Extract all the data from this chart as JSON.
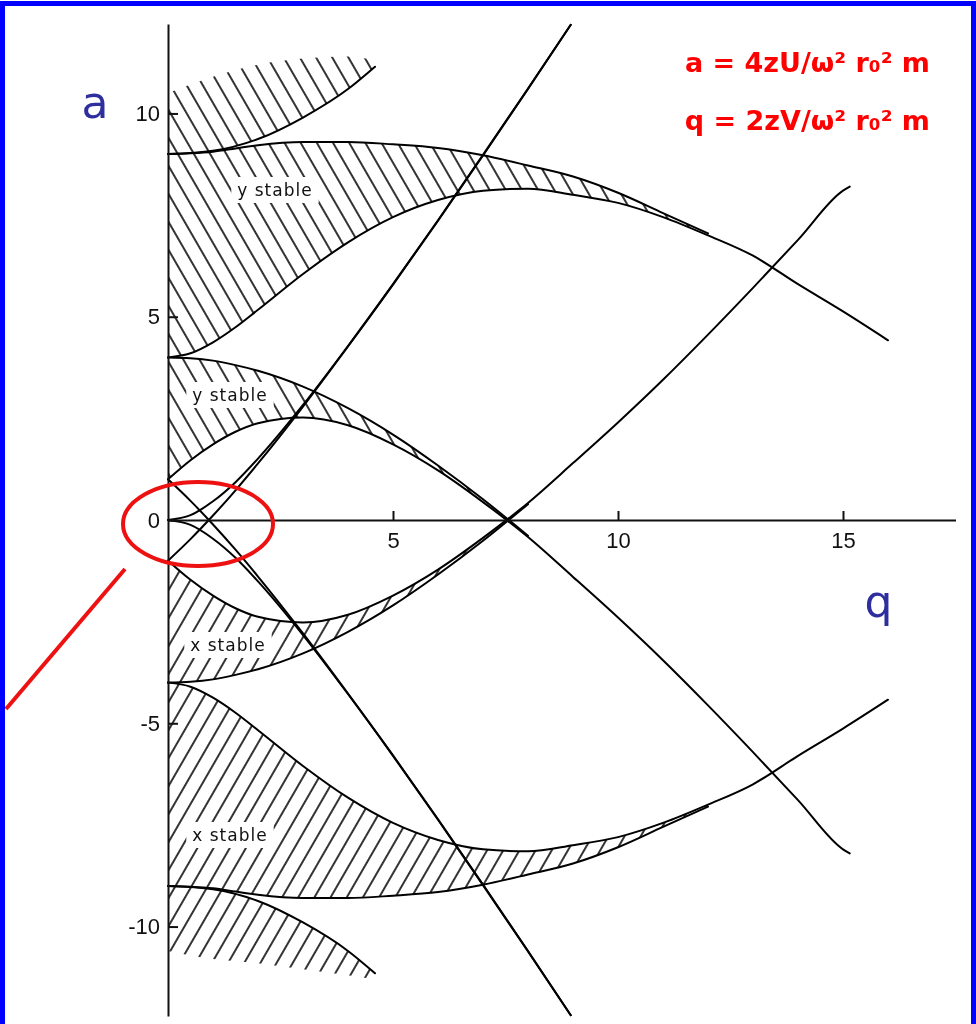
{
  "chart_data": {
    "type": "line",
    "xlabel": "q",
    "ylabel": "a",
    "xlim": [
      0,
      17.5
    ],
    "ylim": [
      -12.2,
      12.2
    ],
    "xticks": [
      5,
      10,
      15
    ],
    "yticks": [
      -10,
      -5,
      0,
      5,
      10
    ],
    "annotations": [
      "a = 4zU/ω² r₀² m",
      "q = 2zV/ω² r₀² m",
      "y stable",
      "y stable",
      "x stable",
      "x stable"
    ],
    "series": [
      {
        "color": "#000000",
        "x": [
          0,
          0.5,
          1,
          1.5,
          2,
          3,
          4,
          5,
          6,
          7,
          8,
          8.95
        ],
        "values": [
          0,
          -0.12,
          -0.46,
          -0.93,
          -1.51,
          -2.83,
          -4.28,
          -5.8,
          -7.37,
          -8.98,
          -10.61,
          -12.18
        ]
      },
      {
        "color": "#000000",
        "x": [
          0,
          0.5,
          1,
          1.5,
          2,
          3,
          4,
          5,
          6,
          7,
          8,
          8.95
        ],
        "values": [
          1.0,
          0.47,
          -0.11,
          -0.73,
          -1.39,
          -2.79,
          -4.27,
          -5.79,
          -7.36,
          -8.97,
          -10.6,
          -12.18
        ]
      },
      {
        "color": "#000000",
        "x": [
          0,
          0.5,
          1,
          1.5,
          2,
          3,
          4,
          5,
          6,
          7,
          8,
          9,
          10,
          11,
          12,
          13,
          14,
          15,
          15.15
        ],
        "values": [
          1.0,
          1.47,
          1.86,
          2.17,
          2.38,
          2.52,
          2.33,
          1.86,
          1.22,
          0.44,
          -0.42,
          -1.4,
          -2.4,
          -3.45,
          -4.56,
          -5.71,
          -6.89,
          -8.1,
          -8.2
        ],
        "lower": [
          1.0,
          1.47,
          1.86,
          2.17,
          2.38,
          2.52,
          2.33,
          1.86,
          1.22,
          0.44,
          null,
          null,
          null,
          null,
          null,
          null,
          null,
          null,
          null
        ],
        "upper": [
          4.0,
          3.98,
          3.92,
          3.81,
          3.67,
          3.28,
          2.75,
          2.1,
          1.34,
          0.51,
          null,
          null,
          null,
          null,
          null,
          null,
          null,
          null,
          null
        ]
      },
      {
        "color": "#000000",
        "x": [
          0,
          0.5,
          1,
          1.5,
          2,
          3,
          4,
          5,
          6,
          7,
          8
        ],
        "values": [
          4.0,
          3.98,
          3.92,
          3.81,
          3.67,
          3.28,
          2.75,
          2.1,
          1.34,
          0.51,
          -0.39
        ]
      },
      {
        "color": "#000000",
        "x": [
          0,
          0.5,
          1,
          1.5,
          2,
          3,
          4,
          5,
          6,
          7,
          8,
          9,
          10,
          11,
          12,
          13,
          14,
          15,
          16
        ],
        "values": [
          4.0,
          4.1,
          4.37,
          4.74,
          5.17,
          6.05,
          6.83,
          7.45,
          7.87,
          8.1,
          8.15,
          8.0,
          7.8,
          7.45,
          7.0,
          6.5,
          5.8,
          5.13,
          4.42
        ],
        "lower": [
          4.0,
          4.1,
          4.37,
          4.74,
          5.17,
          6.05,
          6.83,
          7.45,
          7.87,
          8.1,
          8.15,
          8.0,
          7.8,
          7.45,
          7.0,
          null,
          null,
          null,
          null
        ],
        "upper": [
          9.0,
          9.02,
          9.06,
          9.14,
          9.22,
          9.3,
          9.3,
          9.24,
          9.15,
          8.97,
          8.72,
          8.45,
          8.05,
          7.55,
          7.05,
          null,
          null,
          null,
          null
        ]
      },
      {
        "color": "#000000",
        "x": [
          0,
          0.5,
          1,
          1.5,
          2,
          3,
          4,
          5,
          6,
          7,
          8,
          9,
          10,
          11,
          12
        ],
        "values": [
          9.0,
          9.02,
          9.06,
          9.14,
          9.22,
          9.3,
          9.3,
          9.24,
          9.15,
          8.97,
          8.72,
          8.45,
          8.05,
          7.55,
          7.05
        ]
      },
      {
        "color": "#000000",
        "x": [
          0,
          1,
          2,
          3,
          4,
          4.6
        ],
        "values": [
          9.0,
          9.08,
          9.37,
          9.9,
          10.6,
          11.15
        ],
        "lower": [
          9.0,
          9.08,
          9.37,
          9.9,
          10.6,
          11.15
        ],
        "upper": [
          10.5,
          10.9,
          11.2,
          11.35,
          11.4,
          11.3
        ]
      },
      {
        "color": "#000000",
        "x": [
          0,
          0.5,
          1,
          1.5,
          2,
          3,
          4,
          5,
          6,
          7,
          8,
          8.95
        ],
        "values": [
          0,
          0.12,
          0.46,
          0.93,
          1.51,
          2.83,
          4.28,
          5.8,
          7.37,
          8.98,
          10.61,
          12.18
        ]
      },
      {
        "color": "#000000",
        "x": [
          0,
          0.5,
          1,
          1.5,
          2,
          3,
          4,
          5,
          6,
          7,
          8,
          8.95
        ],
        "values": [
          -1.0,
          -0.47,
          0.11,
          0.73,
          1.39,
          2.79,
          4.27,
          5.79,
          7.36,
          8.97,
          10.6,
          12.18
        ]
      },
      {
        "color": "#000000",
        "x": [
          0,
          0.5,
          1,
          1.5,
          2,
          3,
          4,
          5,
          6,
          7,
          8,
          9,
          10,
          11,
          12,
          13,
          14,
          15,
          15.15
        ],
        "values": [
          -1.0,
          -1.47,
          -1.86,
          -2.17,
          -2.38,
          -2.52,
          -2.33,
          -1.86,
          -1.22,
          -0.44,
          0.42,
          1.4,
          2.4,
          3.45,
          4.56,
          5.71,
          6.89,
          8.1,
          8.2
        ]
      },
      {
        "color": "#000000",
        "x": [
          0,
          0.5,
          1,
          1.5,
          2,
          3,
          4,
          5,
          6,
          7,
          8
        ],
        "values": [
          -4.0,
          -3.98,
          -3.92,
          -3.81,
          -3.67,
          -3.28,
          -2.75,
          -2.1,
          -1.34,
          -0.51,
          0.39
        ],
        "lower": [
          -4.0,
          -3.98,
          -3.92,
          -3.81,
          -3.67,
          -3.28,
          -2.75,
          -2.1,
          -1.34,
          -0.51,
          null
        ],
        "upper": [
          -1.0,
          -1.47,
          -1.86,
          -2.17,
          -2.38,
          -2.52,
          -2.33,
          -1.86,
          -1.22,
          -0.44,
          null
        ]
      },
      {
        "color": "#000000",
        "x": [
          0,
          0.5,
          1,
          1.5,
          2,
          3,
          4,
          5,
          6,
          7,
          8,
          9,
          10,
          11,
          12,
          13,
          14,
          15,
          16
        ],
        "values": [
          -4.0,
          -4.1,
          -4.37,
          -4.74,
          -5.17,
          -6.05,
          -6.83,
          -7.45,
          -7.87,
          -8.1,
          -8.15,
          -8.0,
          -7.8,
          -7.45,
          -7.0,
          -6.5,
          -5.8,
          -5.13,
          -4.42
        ]
      },
      {
        "color": "#000000",
        "x": [
          0,
          0.5,
          1,
          1.5,
          2,
          3,
          4,
          5,
          6,
          7,
          8,
          9,
          10,
          11,
          12
        ],
        "values": [
          -9.0,
          -9.02,
          -9.06,
          -9.14,
          -9.22,
          -9.3,
          -9.3,
          -9.24,
          -9.15,
          -8.97,
          -8.72,
          -8.45,
          -8.05,
          -7.55,
          -7.05
        ],
        "lower": [
          -9.0,
          -9.02,
          -9.06,
          -9.14,
          -9.22,
          -9.3,
          -9.3,
          -9.24,
          -9.15,
          -8.97,
          -8.72,
          -8.45,
          -8.05,
          -7.55,
          -7.05
        ],
        "upper": [
          -4.0,
          -4.1,
          -4.37,
          -4.74,
          -5.17,
          -6.05,
          -6.83,
          -7.45,
          -7.87,
          -8.1,
          -8.15,
          -8.0,
          -7.8,
          -7.45,
          -7.0
        ]
      },
      {
        "color": "#000000",
        "x": [
          0,
          1,
          2,
          3,
          4,
          4.6
        ],
        "values": [
          -9.0,
          -9.08,
          -9.37,
          -9.9,
          -10.6,
          -11.15
        ],
        "lower": [
          -10.6,
          -10.8,
          -10.9,
          -11.05,
          -11.2,
          -11.3
        ],
        "upper": [
          -9.0,
          -9.08,
          -9.37,
          -9.9,
          -10.6,
          -11.15
        ]
      }
    ]
  }
}
